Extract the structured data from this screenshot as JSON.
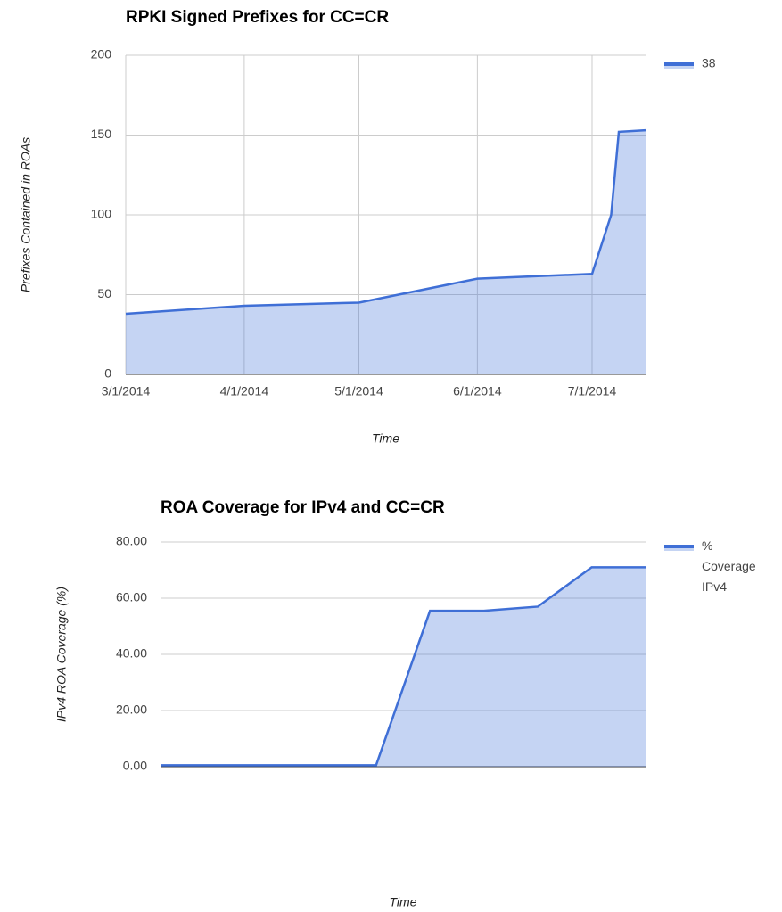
{
  "chart_data": [
    {
      "type": "area",
      "title": "RPKI Signed Prefixes for CC=CR",
      "x_label": "Time",
      "y_label": "Prefixes Contained in ROAs",
      "x": [
        "2014-03-01",
        "2014-04-01",
        "2014-05-01",
        "2014-06-01",
        "2014-07-01",
        "2014-07-06",
        "2014-07-08",
        "2014-07-15"
      ],
      "series": [
        {
          "name": "38",
          "color": "#3f6fd6",
          "values": [
            38,
            43,
            45,
            60,
            63,
            100,
            152,
            153
          ]
        }
      ],
      "xlim": [
        "2014-03-01",
        "2014-07-15"
      ],
      "xticks": [
        {
          "value": "2014-03-01",
          "label": "3/1/2014"
        },
        {
          "value": "2014-04-01",
          "label": "4/1/2014"
        },
        {
          "value": "2014-05-01",
          "label": "5/1/2014"
        },
        {
          "value": "2014-06-01",
          "label": "6/1/2014"
        },
        {
          "value": "2014-07-01",
          "label": "7/1/2014"
        }
      ],
      "ylim": [
        0,
        200
      ],
      "yticks": [
        0,
        50,
        100,
        150,
        200
      ],
      "grid": true,
      "legend": "right"
    },
    {
      "type": "area",
      "title": "ROA Coverage for IPv4 and CC=CR",
      "x_label": "Time",
      "y_label": "IPv4 ROA Coverage (%)",
      "categories": [
        null,
        null,
        null,
        null,
        null,
        null,
        null,
        null,
        null,
        null
      ],
      "series": [
        {
          "name": "% Coverage IPv4",
          "color": "#3f6fd6",
          "values": [
            0.5,
            0.5,
            0.5,
            0.5,
            0.5,
            55.5,
            55.5,
            57,
            71,
            71
          ]
        }
      ],
      "ylim": [
        0,
        80
      ],
      "yticks": [
        {
          "value": 0,
          "label": "0.00"
        },
        {
          "value": 20,
          "label": "20.00"
        },
        {
          "value": 40,
          "label": "40.00"
        },
        {
          "value": 60,
          "label": "60.00"
        },
        {
          "value": 80,
          "label": "80.00"
        }
      ],
      "grid": true,
      "legend": "right"
    }
  ]
}
